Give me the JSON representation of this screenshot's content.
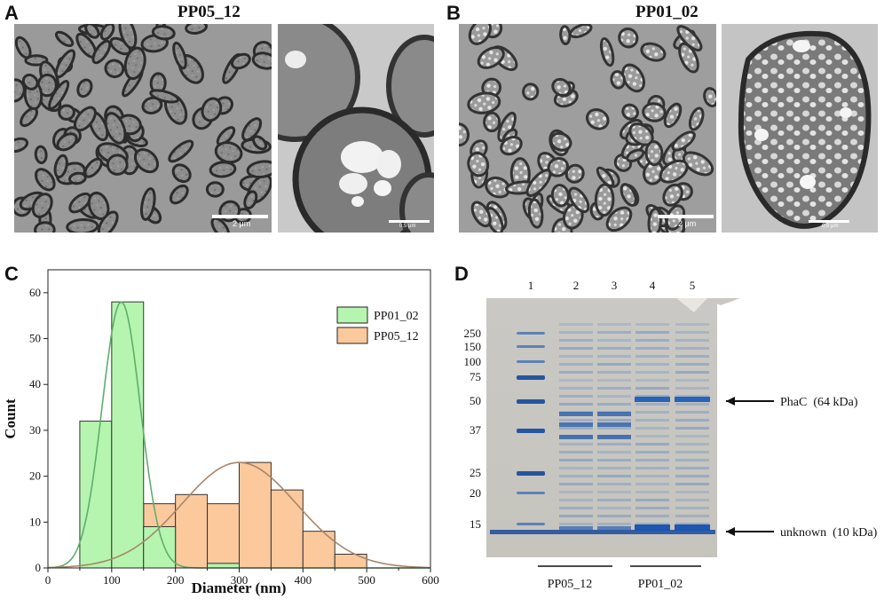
{
  "panels": {
    "A": {
      "letter": "A",
      "title": "PP05_12",
      "scale_overview": "2 μm",
      "scale_zoom": "0.5 μm"
    },
    "B": {
      "letter": "B",
      "title": "PP01_02",
      "scale_overview": "2 μm",
      "scale_zoom": "0.5 μm"
    },
    "C": {
      "letter": "C"
    },
    "D": {
      "letter": "D"
    }
  },
  "chart_data": {
    "type": "bar",
    "xlabel": "Diameter (nm)",
    "ylabel": "Count",
    "xlim": [
      0,
      600
    ],
    "ylim": [
      0,
      65
    ],
    "xticks": [
      0,
      100,
      200,
      300,
      400,
      500,
      600
    ],
    "yticks": [
      0,
      10,
      20,
      30,
      40,
      50,
      60
    ],
    "legend_position": "top-right",
    "bin_width": 50,
    "series": [
      {
        "name": "PP01_02",
        "color": "#b5f5b0",
        "curve_color": "#5fae6a",
        "bins": [
          {
            "x0": 50,
            "count": 32
          },
          {
            "x0": 100,
            "count": 58
          },
          {
            "x0": 150,
            "count": 9
          },
          {
            "x0": 250,
            "count": 1
          }
        ],
        "fit": {
          "mean": 115,
          "sd": 30,
          "peak": 58
        }
      },
      {
        "name": "PP05_12",
        "color": "#fbc99c",
        "curve_color": "#a9866a",
        "bins": [
          {
            "x0": 150,
            "count": 14
          },
          {
            "x0": 200,
            "count": 16
          },
          {
            "x0": 250,
            "count": 14
          },
          {
            "x0": 300,
            "count": 23
          },
          {
            "x0": 350,
            "count": 17
          },
          {
            "x0": 400,
            "count": 8
          },
          {
            "x0": 450,
            "count": 3
          }
        ],
        "fit": {
          "mean": 300,
          "sd": 90,
          "peak": 23
        }
      }
    ]
  },
  "gel": {
    "lane_numbers": [
      "1",
      "2",
      "3",
      "4",
      "5"
    ],
    "markers": [
      "250",
      "150",
      "100",
      "75",
      "50",
      "37",
      "25",
      "20",
      "15"
    ],
    "annotations": [
      "PhaC  (64 kDa)",
      "unknown  (10 kDa)"
    ],
    "groups": [
      "PP05_12",
      "PP01_02"
    ]
  }
}
